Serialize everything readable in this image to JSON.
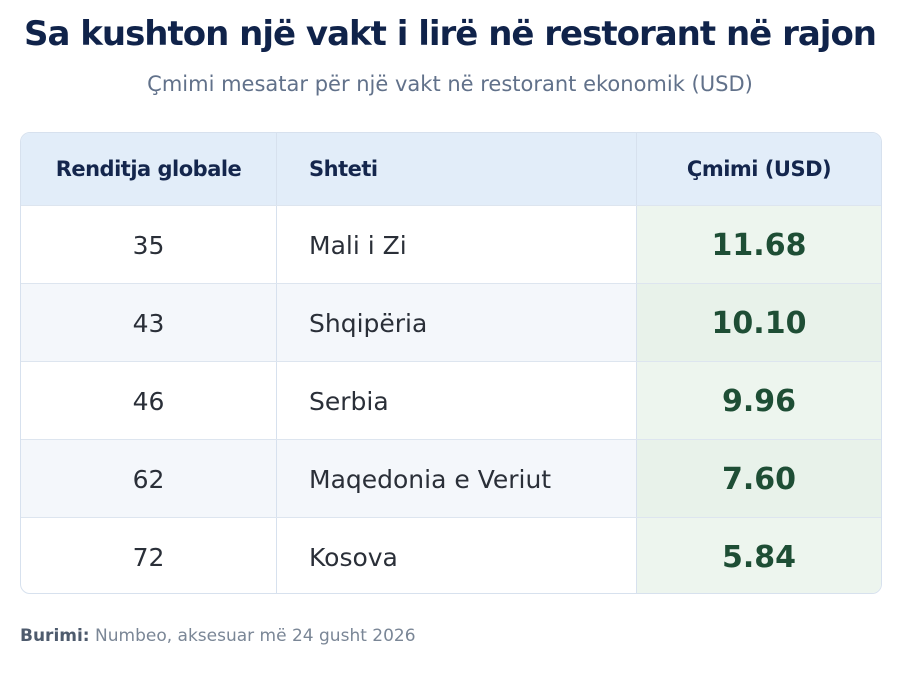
{
  "title": "Sa kushton një vakt i lirë në restorant në rajon",
  "subtitle": "Çmimi mesatar për një vakt në restorant ekonomik (USD)",
  "source": {
    "label": "Burimi:",
    "text": "Numbeo, aksesuar më 24 gusht 2026"
  },
  "colors": {
    "title": "#10234a",
    "header_bg": "#e2edf9",
    "price_text": "#1e4e35",
    "price_bg": "#edf5ee"
  },
  "chart_data": {
    "type": "table",
    "columns": [
      "Renditja globale",
      "Shteti",
      "Çmimi (USD)"
    ],
    "rows": [
      [
        "35",
        "Mali i Zi",
        "11.68"
      ],
      [
        "43",
        "Shqipëria",
        "10.10"
      ],
      [
        "46",
        "Serbia",
        "9.96"
      ],
      [
        "62",
        "Maqedonia e Veriut",
        "7.60"
      ],
      [
        "72",
        "Kosova",
        "5.84"
      ]
    ]
  }
}
